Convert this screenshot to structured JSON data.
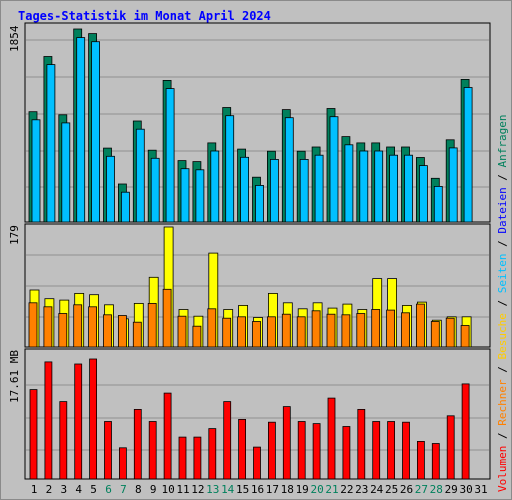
{
  "title": "Tages-Statistik im Monat April 2024",
  "colors": {
    "background": "#c0c0c0",
    "title": "#0000ff",
    "plot_bg": "#c0c0c0",
    "grid": "#909090",
    "anfragen": "#00805c",
    "dateien": "#00c0ff",
    "seiten": "#00c0ff",
    "besuche": "#ffff00",
    "rechner": "#ff8000",
    "volumen": "#ff0000",
    "slash": "#000000"
  },
  "x_tick_labels": [
    "1",
    "2",
    "3",
    "4",
    "5",
    "6",
    "7",
    "8",
    "9",
    "10",
    "11",
    "12",
    "13",
    "14",
    "15",
    "16",
    "17",
    "18",
    "19",
    "20",
    "21",
    "22",
    "23",
    "24",
    "25",
    "26",
    "27",
    "28",
    "29",
    "30",
    "31"
  ],
  "weekend_days": [
    6,
    7,
    13,
    14,
    20,
    21,
    27,
    28
  ],
  "tick_colors": {
    "weekday": "#000000",
    "weekend": "#00805c"
  },
  "right_legend": [
    {
      "text": "Volumen",
      "color": "#ff0000"
    },
    {
      "text": " / ",
      "color": "#000000"
    },
    {
      "text": "Rechner",
      "color": "#ff8000"
    },
    {
      "text": " / ",
      "color": "#000000"
    },
    {
      "text": "Besuche",
      "color": "#ffcc00"
    },
    {
      "text": " / ",
      "color": "#000000"
    },
    {
      "text": "Seiten",
      "color": "#00c0ff"
    },
    {
      "text": " / ",
      "color": "#000000"
    },
    {
      "text": "Dateien",
      "color": "#0000ff"
    },
    {
      "text": " / ",
      "color": "#000000"
    },
    {
      "text": "Anfragen",
      "color": "#00805c"
    }
  ],
  "chart_data": [
    {
      "type": "bar",
      "panel": "anfragen-dateien",
      "y_label": "1854",
      "ylim": [
        0,
        1854
      ],
      "categories": [
        1,
        2,
        3,
        4,
        5,
        6,
        7,
        8,
        9,
        10,
        11,
        12,
        13,
        14,
        15,
        16,
        17,
        18,
        19,
        20,
        21,
        22,
        23,
        24,
        25,
        26,
        27,
        28,
        29,
        30
      ],
      "series": [
        {
          "name": "Anfragen",
          "color": "#00805c",
          "values": [
            1060,
            1590,
            1030,
            1854,
            1810,
            710,
            365,
            970,
            690,
            1360,
            590,
            580,
            760,
            1100,
            700,
            430,
            680,
            1080,
            680,
            720,
            1090,
            820,
            760,
            760,
            720,
            720,
            620,
            420,
            790,
            1370
          ]
        },
        {
          "name": "Dateien",
          "color": "#00c0ff",
          "values": [
            1020,
            1550,
            990,
            1810,
            1770,
            670,
            325,
            930,
            650,
            1320,
            550,
            540,
            720,
            1060,
            660,
            390,
            640,
            1040,
            640,
            680,
            1050,
            780,
            720,
            720,
            680,
            680,
            580,
            380,
            750,
            1330
          ]
        }
      ]
    },
    {
      "type": "bar",
      "panel": "besuche-rechner",
      "y_label": "179",
      "ylim": [
        0,
        179
      ],
      "categories": [
        1,
        2,
        3,
        4,
        5,
        6,
        7,
        8,
        9,
        10,
        11,
        12,
        13,
        14,
        15,
        16,
        17,
        18,
        19,
        20,
        21,
        22,
        23,
        24,
        25,
        26,
        27,
        28,
        29,
        30
      ],
      "series": [
        {
          "name": "Besuche",
          "color": "#ffff00",
          "values": [
            85,
            72,
            70,
            80,
            78,
            63,
            42,
            65,
            104,
            179,
            56,
            46,
            140,
            56,
            62,
            44,
            80,
            66,
            57,
            66,
            58,
            64,
            56,
            102,
            102,
            62,
            67,
            40,
            45,
            45
          ]
        },
        {
          "name": "Rechner",
          "color": "#ff8000",
          "values": [
            66,
            60,
            50,
            63,
            60,
            48,
            47,
            37,
            65,
            86,
            46,
            31,
            57,
            43,
            45,
            38,
            45,
            49,
            45,
            54,
            49,
            48,
            50,
            56,
            55,
            51,
            64,
            38,
            43,
            32
          ]
        }
      ]
    },
    {
      "type": "bar",
      "panel": "volumen",
      "y_label": "17.61 MB",
      "ylim": [
        0,
        17.61
      ],
      "categories": [
        1,
        2,
        3,
        4,
        5,
        6,
        7,
        8,
        9,
        10,
        11,
        12,
        13,
        14,
        15,
        16,
        17,
        18,
        19,
        20,
        21,
        22,
        23,
        24,
        25,
        26,
        27,
        28,
        29,
        30
      ],
      "series": [
        {
          "name": "Volumen",
          "color": "#ff0000",
          "values": [
            12.6,
            16.5,
            10.9,
            16.2,
            16.9,
            8.1,
            4.4,
            9.8,
            8.1,
            12.1,
            5.9,
            5.9,
            7.1,
            10.9,
            8.4,
            4.5,
            8.0,
            10.2,
            8.1,
            7.8,
            11.4,
            7.4,
            9.8,
            8.1,
            8.1,
            8.0,
            5.3,
            5.0,
            8.9,
            13.4
          ]
        }
      ]
    }
  ]
}
